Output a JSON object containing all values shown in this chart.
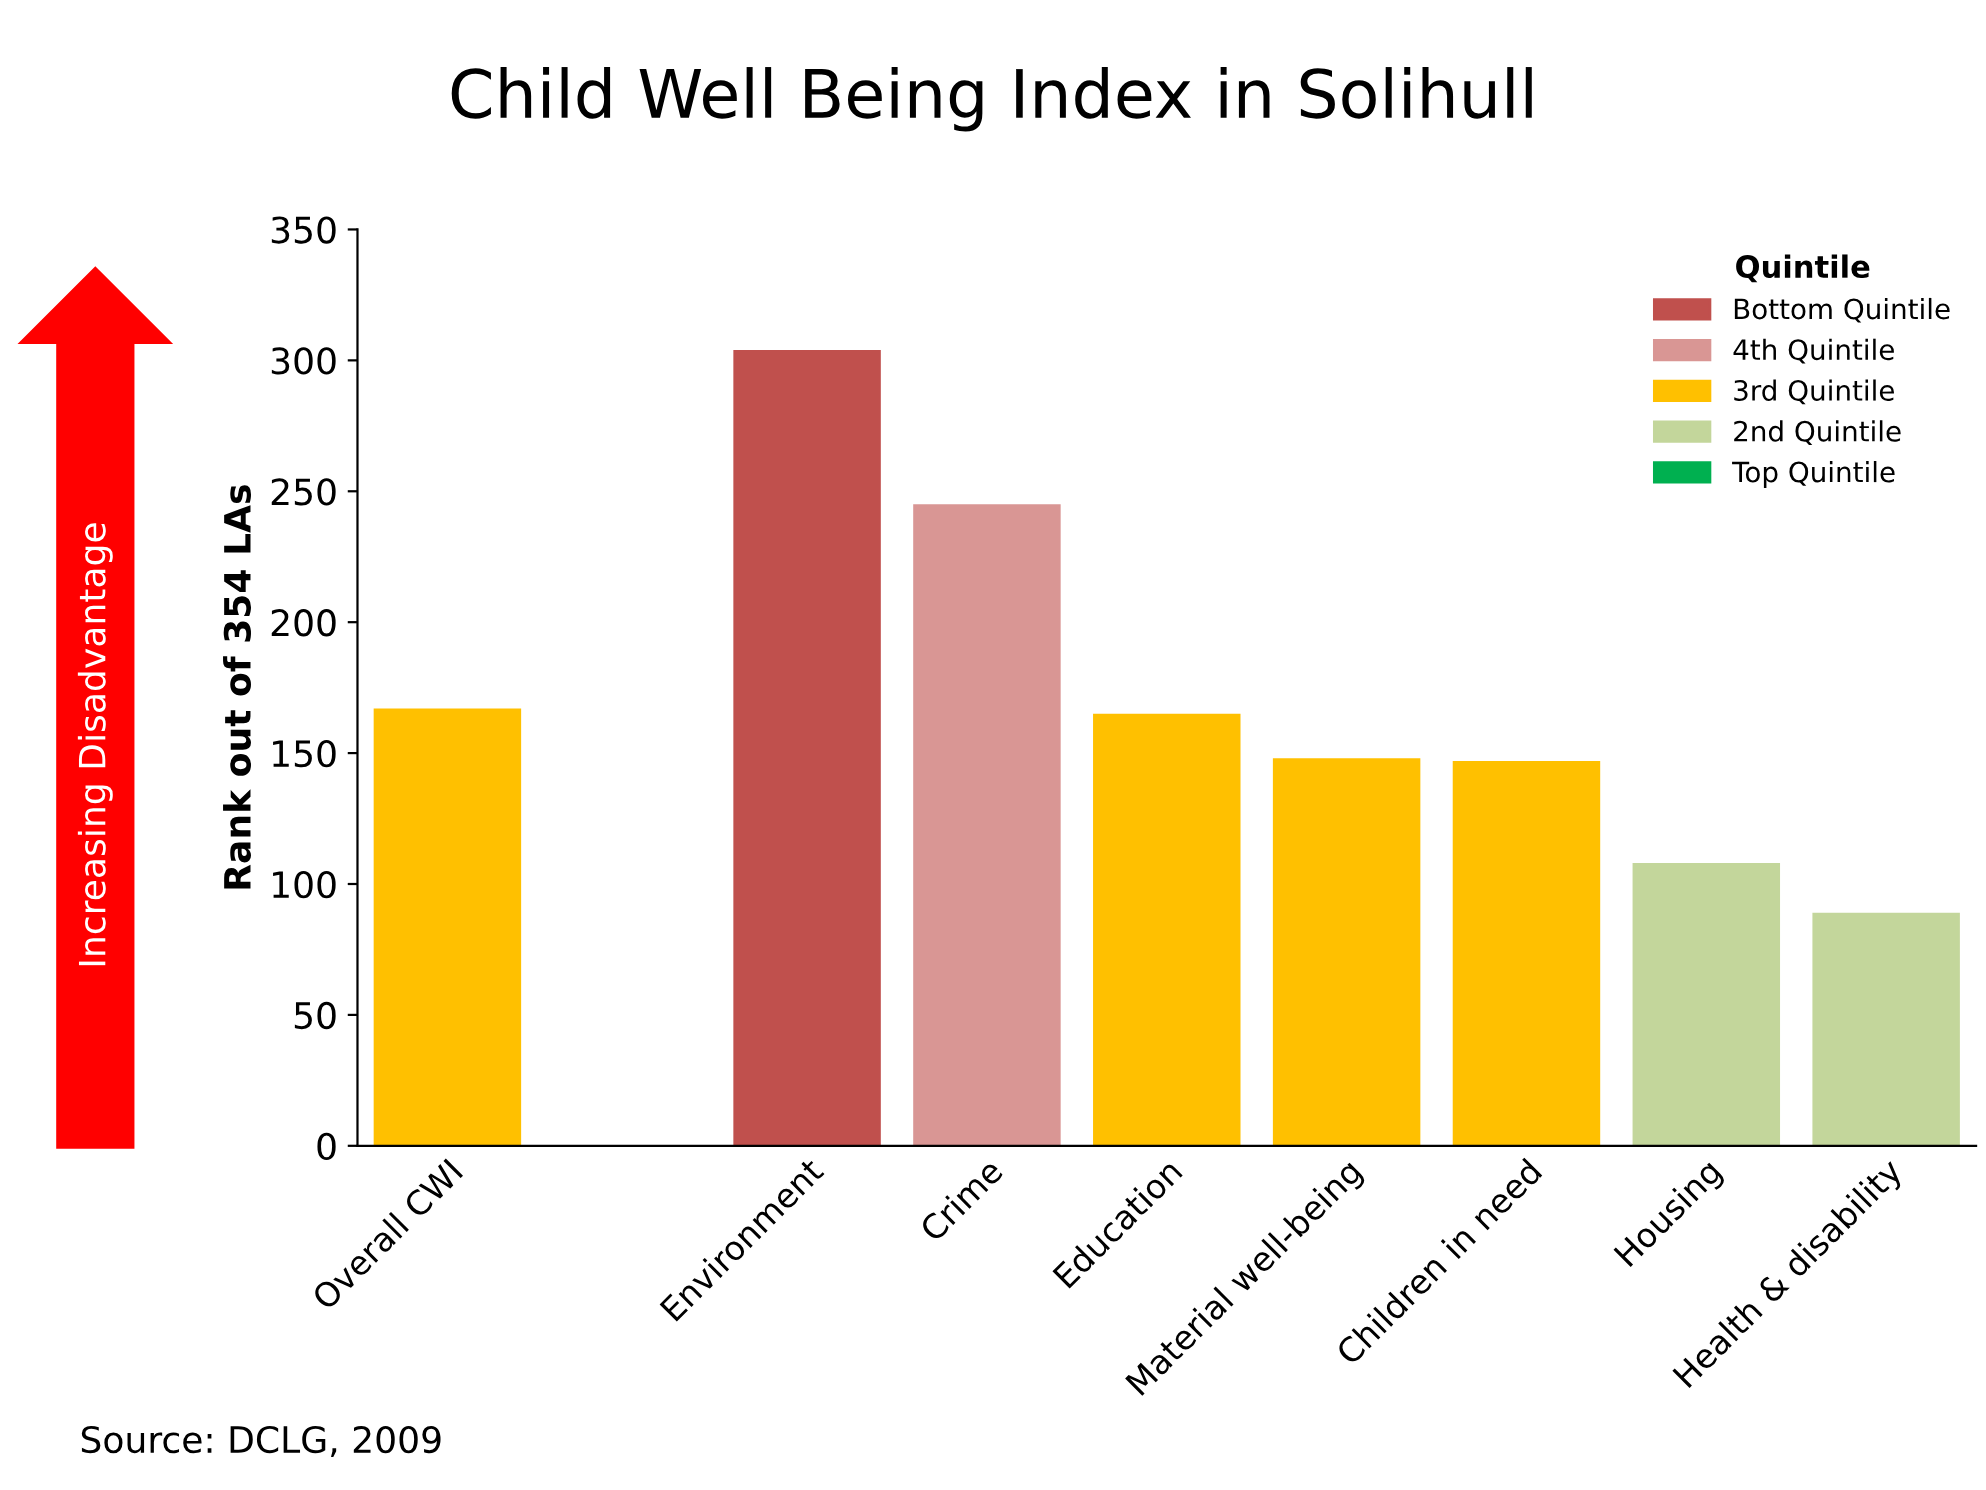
{
  "chart_data": {
    "type": "bar",
    "title": "Child Well Being Index in Solihull",
    "ylabel": "Rank out of 354 LAs",
    "categories": [
      "Overall CWI",
      null,
      "Environment",
      "Crime",
      "Education",
      "Material well-being",
      "Children in need",
      "Housing",
      "Health & disability"
    ],
    "series": [
      {
        "name": "Bottom Quintile",
        "color": "#c0504d",
        "values": [
          null,
          null,
          304,
          null,
          null,
          null,
          null,
          null,
          null
        ]
      },
      {
        "name": "4th Quintile",
        "color": "#d99694",
        "values": [
          null,
          null,
          null,
          245,
          null,
          null,
          null,
          null,
          null
        ]
      },
      {
        "name": "3rd Quintile",
        "color": "#ffc000",
        "values": [
          167,
          null,
          null,
          null,
          165,
          148,
          147,
          null,
          null
        ]
      },
      {
        "name": "2nd Quintile",
        "color": "#c3d69b",
        "values": [
          null,
          null,
          null,
          null,
          null,
          null,
          null,
          108,
          89
        ]
      },
      {
        "name": "Top Quintile",
        "color": "#00b050",
        "values": [
          null,
          null,
          null,
          null,
          null,
          null,
          null,
          null,
          null
        ]
      }
    ],
    "legend_title": "Quintile",
    "legend": "top right",
    "ylim": [
      0,
      350
    ],
    "yticks": [
      0,
      50,
      100,
      150,
      200,
      250,
      300,
      350
    ],
    "grid": false,
    "annotations": [
      "Increasing Disadvantage",
      "Source: DCLG, 2009"
    ]
  }
}
